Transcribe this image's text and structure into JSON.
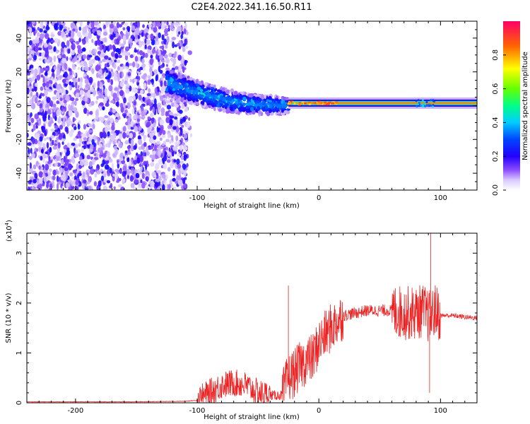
{
  "title": "C2E4.2022.341.16.50.R11",
  "chart_data": [
    {
      "type": "heatmap",
      "xlabel": "Height of straight line (km)",
      "ylabel": "Frequency (Hz)",
      "xlim": [
        -240,
        130
      ],
      "ylim": [
        -50,
        50
      ],
      "x_ticks": [
        -200,
        -100,
        0,
        100
      ],
      "y_ticks": [
        -40,
        -20,
        0,
        20,
        40
      ],
      "colorbar": {
        "label": "Normalized spectral amplitude",
        "range": [
          0.0,
          1.0
        ],
        "ticks": [
          "0.0",
          "0.2",
          "0.4",
          "0.6",
          "0.8"
        ],
        "colors": [
          "#ffffff",
          "#a78bff",
          "#3b00ff",
          "#0000ff",
          "#00ffff",
          "#00ff66",
          "#aaff00",
          "#ffff00",
          "#ff8800",
          "#ff0044",
          "#ff0080"
        ]
      },
      "regions": [
        {
          "description": "noise",
          "x_range": [
            -240,
            -108
          ],
          "freq_range": [
            -50,
            50
          ],
          "amplitude": 0.1
        },
        {
          "description": "signal band",
          "x_range": [
            -125,
            -25
          ],
          "center_freq_at_start": 14,
          "center_freq_at_end": 0,
          "amplitude": 0.3
        },
        {
          "description": "carrier line",
          "x_range": [
            -25,
            130
          ],
          "freq": 1.5,
          "amplitude": 0.85
        }
      ]
    },
    {
      "type": "line",
      "xlabel": "Height of straight line (km)",
      "ylabel": "SNR (10 * v/v)",
      "y_scale_label": "(x10",
      "y_scale_exp": "4",
      "xlim": [
        -240,
        130
      ],
      "ylim": [
        0,
        3.4
      ],
      "x_ticks": [
        -200,
        -100,
        0,
        100
      ],
      "y_ticks": [
        0,
        1,
        2,
        3
      ],
      "line_color": "#ee2222",
      "series": [
        {
          "x": [
            -240,
            -200,
            -150,
            -110,
            -100,
            -90,
            -80,
            -70,
            -60,
            -50,
            -40,
            -30,
            -25,
            -20,
            -15,
            -10,
            -5,
            0,
            10,
            20,
            30,
            40,
            50,
            60,
            70,
            80,
            85,
            90,
            92,
            95,
            100,
            110,
            120,
            130
          ],
          "values": [
            0.02,
            0.02,
            0.02,
            0.03,
            0.05,
            0.2,
            0.35,
            0.4,
            0.35,
            0.2,
            0.15,
            0.15,
            0.5,
            0.6,
            0.75,
            0.85,
            0.9,
            1.2,
            1.5,
            1.75,
            1.8,
            1.85,
            1.85,
            1.85,
            1.8,
            1.8,
            1.85,
            1.75,
            1.7,
            1.85,
            1.75,
            1.75,
            1.72,
            1.7
          ]
        }
      ],
      "annotations": [
        {
          "x": -25,
          "value": 2.35
        },
        {
          "x": 92,
          "value": 3.4
        },
        {
          "x": 91,
          "value": 0.2
        }
      ]
    }
  ]
}
